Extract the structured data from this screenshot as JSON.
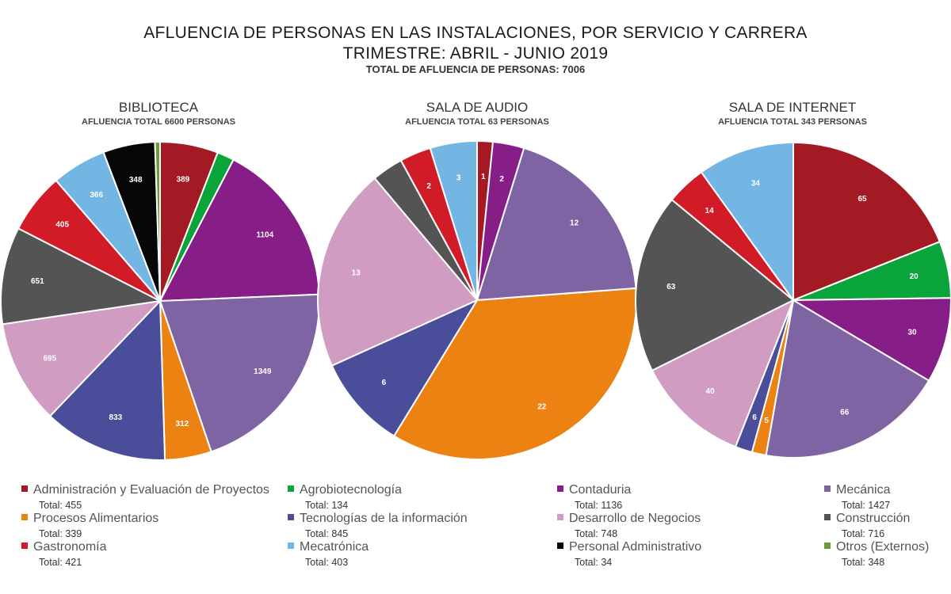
{
  "title": "AFLUENCIA DE PERSONAS EN LAS INSTALACIONES, POR SERVICIO Y CARRERA",
  "subtitle": "TRIMESTRE: ABRIL - JUNIO 2019",
  "total_text": "TOTAL DE AFLUENCIA DE PERSONAS: 7006",
  "categories": [
    {
      "name": "Administración y Evaluación de Proyectos",
      "color": "#a31a25",
      "total_text": "Total: 455"
    },
    {
      "name": "Agrobiotecnología",
      "color": "#0aa53a",
      "total_text": "Total: 134"
    },
    {
      "name": "Contaduria",
      "color": "#871d86",
      "total_text": "Total: 1136"
    },
    {
      "name": "Mecánica",
      "color": "#7f64a3",
      "total_text": "Total: 1427"
    },
    {
      "name": "Procesos Alimentarios",
      "color": "#eb8212",
      "total_text": "Total: 339"
    },
    {
      "name": "Tecnologías de la información",
      "color": "#4a4d9a",
      "total_text": "Total: 845"
    },
    {
      "name": "Desarrollo de Negocios",
      "color": "#d19cc2",
      "total_text": "Total: 748"
    },
    {
      "name": "Construcción",
      "color": "#555454",
      "total_text": "Total: 716"
    },
    {
      "name": "Gastronomía",
      "color": "#d11c28",
      "total_text": "Total: 421"
    },
    {
      "name": "Mecatrónica",
      "color": "#74b6e3",
      "total_text": "Total: 403"
    },
    {
      "name": "Personal Administrativo",
      "color": "#060606",
      "total_text": "Total: 34"
    },
    {
      "name": "Otros (Externos)",
      "color": "#6e9a3a",
      "total_text": "Total: 348"
    }
  ],
  "chart_data": [
    {
      "type": "pie",
      "title": "BIBLIOTECA",
      "subtitle": "AFLUENCIA TOTAL 6600 PERSONAS",
      "labels": [
        "Administración y Evaluación de Proyectos",
        "Agrobiotecnología",
        "Contaduria",
        "Mecánica",
        "Procesos Alimentarios",
        "Tecnologías de la información",
        "Desarrollo de Negocios",
        "Construcción",
        "Gastronomía",
        "Mecatrónica",
        "Personal Administrativo",
        "Otros (Externos)"
      ],
      "values": [
        389,
        114,
        1104,
        1349,
        312,
        833,
        695,
        651,
        405,
        366,
        348,
        34
      ],
      "data_labels": [
        "389",
        "",
        "1104",
        "1349",
        "312",
        "833",
        "695",
        "651",
        "405",
        "366",
        "348",
        ""
      ]
    },
    {
      "type": "pie",
      "title": "SALA DE AUDIO",
      "subtitle": "AFLUENCIA TOTAL 63 PERSONAS",
      "labels": [
        "Administración y Evaluación de Proyectos",
        "Contaduria",
        "Mecánica",
        "Procesos Alimentarios",
        "Tecnologías de la información",
        "Desarrollo de Negocios",
        "Construcción",
        "Gastronomía",
        "Mecatrónica"
      ],
      "values": [
        1,
        2,
        12,
        22,
        6,
        13,
        2,
        2,
        3
      ],
      "data_labels": [
        "1",
        "2",
        "12",
        "22",
        "6",
        "13",
        "",
        "2",
        "3"
      ]
    },
    {
      "type": "pie",
      "title": "SALA DE INTERNET",
      "subtitle": "AFLUENCIA TOTAL 343 PERSONAS",
      "labels": [
        "Administración y Evaluación de Proyectos",
        "Agrobiotecnología",
        "Contaduria",
        "Mecánica",
        "Procesos Alimentarios",
        "Tecnologías de la información",
        "Desarrollo de Negocios",
        "Construcción",
        "Gastronomía",
        "Mecatrónica"
      ],
      "values": [
        65,
        20,
        30,
        66,
        5,
        6,
        40,
        63,
        14,
        34
      ],
      "data_labels": [
        "65",
        "20",
        "30",
        "66",
        "5",
        "6",
        "40",
        "63",
        "14",
        "34"
      ]
    }
  ]
}
